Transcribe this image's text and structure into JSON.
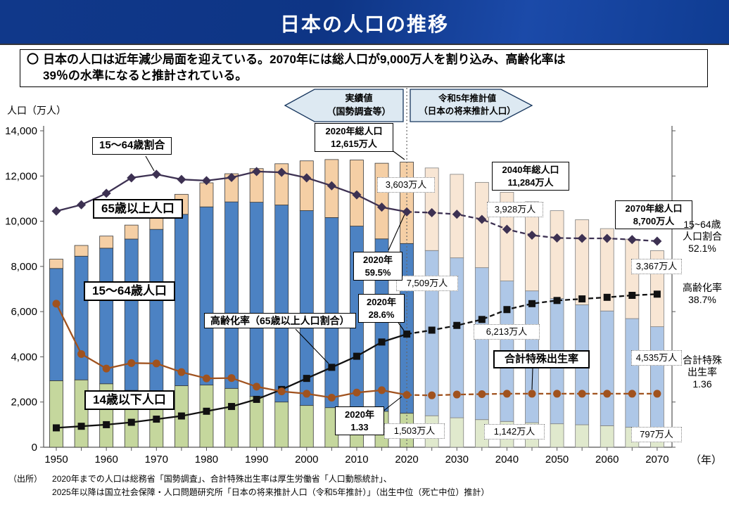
{
  "header": {
    "title": "日本の人口の推移"
  },
  "summary": {
    "bullet": "〇",
    "body": "日本の人口は近年減少局面を迎えている。2070年には総人口が9,000万人を割り込み、高齢化率は\n39％の水準になると推計されている。"
  },
  "period_arrows": {
    "actual": "実績値\n（国勢調査等）",
    "projection": "令和5年推計値\n（日本の将来推計人口）"
  },
  "axes": {
    "y_title": "人口（万人）",
    "x_unit": "（年）",
    "y_tick_values": [
      0,
      2000,
      4000,
      6000,
      8000,
      10000,
      12000,
      14000
    ],
    "x_label_years": [
      1950,
      1960,
      1970,
      1980,
      1990,
      2000,
      2010,
      2020,
      2030,
      2040,
      2050,
      2060,
      2070
    ]
  },
  "chart_data": {
    "type": "bar",
    "subtype": "stacked-bars-with-overlay-lines",
    "title": "日本の人口の推移",
    "ylabel": "人口（万人）",
    "xlabel": "（年）",
    "ylim": [
      0,
      14000
    ],
    "grid": false,
    "projection_from_year": 2020,
    "x": [
      1950,
      1955,
      1960,
      1965,
      1970,
      1975,
      1980,
      1985,
      1990,
      1995,
      2000,
      2005,
      2010,
      2015,
      2020,
      2025,
      2030,
      2035,
      2040,
      2045,
      2050,
      2055,
      2060,
      2065,
      2070
    ],
    "bar_series": [
      {
        "name": "14歳以下人口",
        "unit": "万人",
        "values": [
          2943,
          2980,
          2807,
          2517,
          2482,
          2722,
          2751,
          2603,
          2249,
          2001,
          1847,
          1752,
          1680,
          1589,
          1503,
          1393,
          1303,
          1222,
          1142,
          1085,
          1037,
          995,
          951,
          882,
          797
        ]
      },
      {
        "name": "15～64歳人口",
        "unit": "万人",
        "values": [
          4966,
          5473,
          6000,
          6693,
          7157,
          7581,
          7883,
          8251,
          8590,
          8716,
          8622,
          8409,
          8103,
          7629,
          7509,
          7310,
          7076,
          6722,
          6213,
          5832,
          5540,
          5307,
          5078,
          4809,
          4535
        ]
      },
      {
        "name": "65歳以上人口",
        "unit": "万人",
        "values": [
          411,
          475,
          535,
          618,
          733,
          887,
          1065,
          1247,
          1489,
          1826,
          2201,
          2567,
          2925,
          3347,
          3603,
          3653,
          3696,
          3774,
          3928,
          3945,
          3888,
          3764,
          3643,
          3513,
          3367
        ]
      }
    ],
    "line_series": [
      {
        "name": "15～64歳割合",
        "unit": "%",
        "values": [
          59.7,
          61.3,
          64.2,
          68.1,
          69.0,
          67.7,
          67.4,
          68.2,
          69.7,
          69.5,
          68.1,
          66.1,
          63.8,
          60.7,
          59.5,
          59.3,
          58.9,
          57.6,
          55.1,
          53.6,
          52.9,
          52.8,
          52.8,
          52.5,
          52.1
        ]
      },
      {
        "name": "高齢化率（65歳以上人口割合）",
        "unit": "%",
        "values": [
          4.9,
          5.3,
          5.7,
          6.3,
          7.1,
          7.9,
          9.1,
          10.3,
          12.1,
          14.6,
          17.4,
          20.2,
          23.0,
          26.6,
          28.6,
          29.6,
          30.8,
          32.3,
          34.8,
          36.3,
          37.1,
          37.5,
          37.9,
          38.4,
          38.7
        ]
      },
      {
        "name": "合計特殊出生率",
        "unit": "",
        "values": [
          3.65,
          2.37,
          2.0,
          2.14,
          2.13,
          1.91,
          1.75,
          1.76,
          1.54,
          1.42,
          1.36,
          1.26,
          1.39,
          1.45,
          1.33,
          1.32,
          1.34,
          1.35,
          1.36,
          1.36,
          1.36,
          1.36,
          1.36,
          1.36,
          1.36
        ]
      }
    ]
  },
  "annotations": {
    "series_labels": {
      "ratio_15_64": "15～64歳割合",
      "pop_65": "65歳以上人口",
      "pop_15_64": "15～64歳人口",
      "pop_0_14": "14歳以下人口",
      "aging_rate": "高齢化率（65歳以上人口割合）",
      "tfr": "合計特殊出生率"
    },
    "totals": {
      "y2020": "2020年総人口\n12,615万人",
      "y2040": "2040年総人口\n11,284万人",
      "y2070": "2070年総人口\n8,700万人"
    },
    "values": {
      "y2020_65": "3,603万人",
      "y2020_1564": "7,509万人",
      "y2020_014": "1,503万人",
      "y2040_65": "3,928万人",
      "y2040_1564": "6,213万人",
      "y2040_014": "1,142万人",
      "y2070_65": "3,367万人",
      "y2070_1564": "4,535万人",
      "y2070_014": "797万人"
    },
    "points_2020": {
      "ratio": "2020年\n59.5%",
      "aging": "2020年\n28.6%",
      "tfr": "2020年\n1.33"
    },
    "right_labels": {
      "ratio": "15~64歳\n人口割合\n52.1%",
      "aging": "高齢化率\n38.7%",
      "tfr": "合計特殊\n出生率\n1.36"
    }
  },
  "source": {
    "prefix": "（出所）",
    "lines": "2020年までの人口は総務省「国勢調査」、合計特殊出生率は厚生労働省「人口動態統計」、\n2025年以降は国立社会保障・人口問題研究所「日本の将来推計人口（令和5年推計）」（出生中位（死亡中位）推計）"
  },
  "colors": {
    "header_bg": "#0e3585",
    "bar_0_14": "#c5d79d",
    "bar_15_64": "#4c82c3",
    "bar_65": "#f5cfa5",
    "bar_0_14_proj": "#e0e9cd",
    "bar_15_64_proj": "#aec7e7",
    "bar_65_proj": "#f8e6d4",
    "bar_stroke_hist": "#3a3a3a",
    "bar_stroke_proj": "#808080",
    "line_ratio": "#3d3152",
    "line_aging": "#111111",
    "line_tfr": "#a0521e",
    "arrow_fill": "#dde9f2",
    "arrow_stroke": "#17365d"
  }
}
